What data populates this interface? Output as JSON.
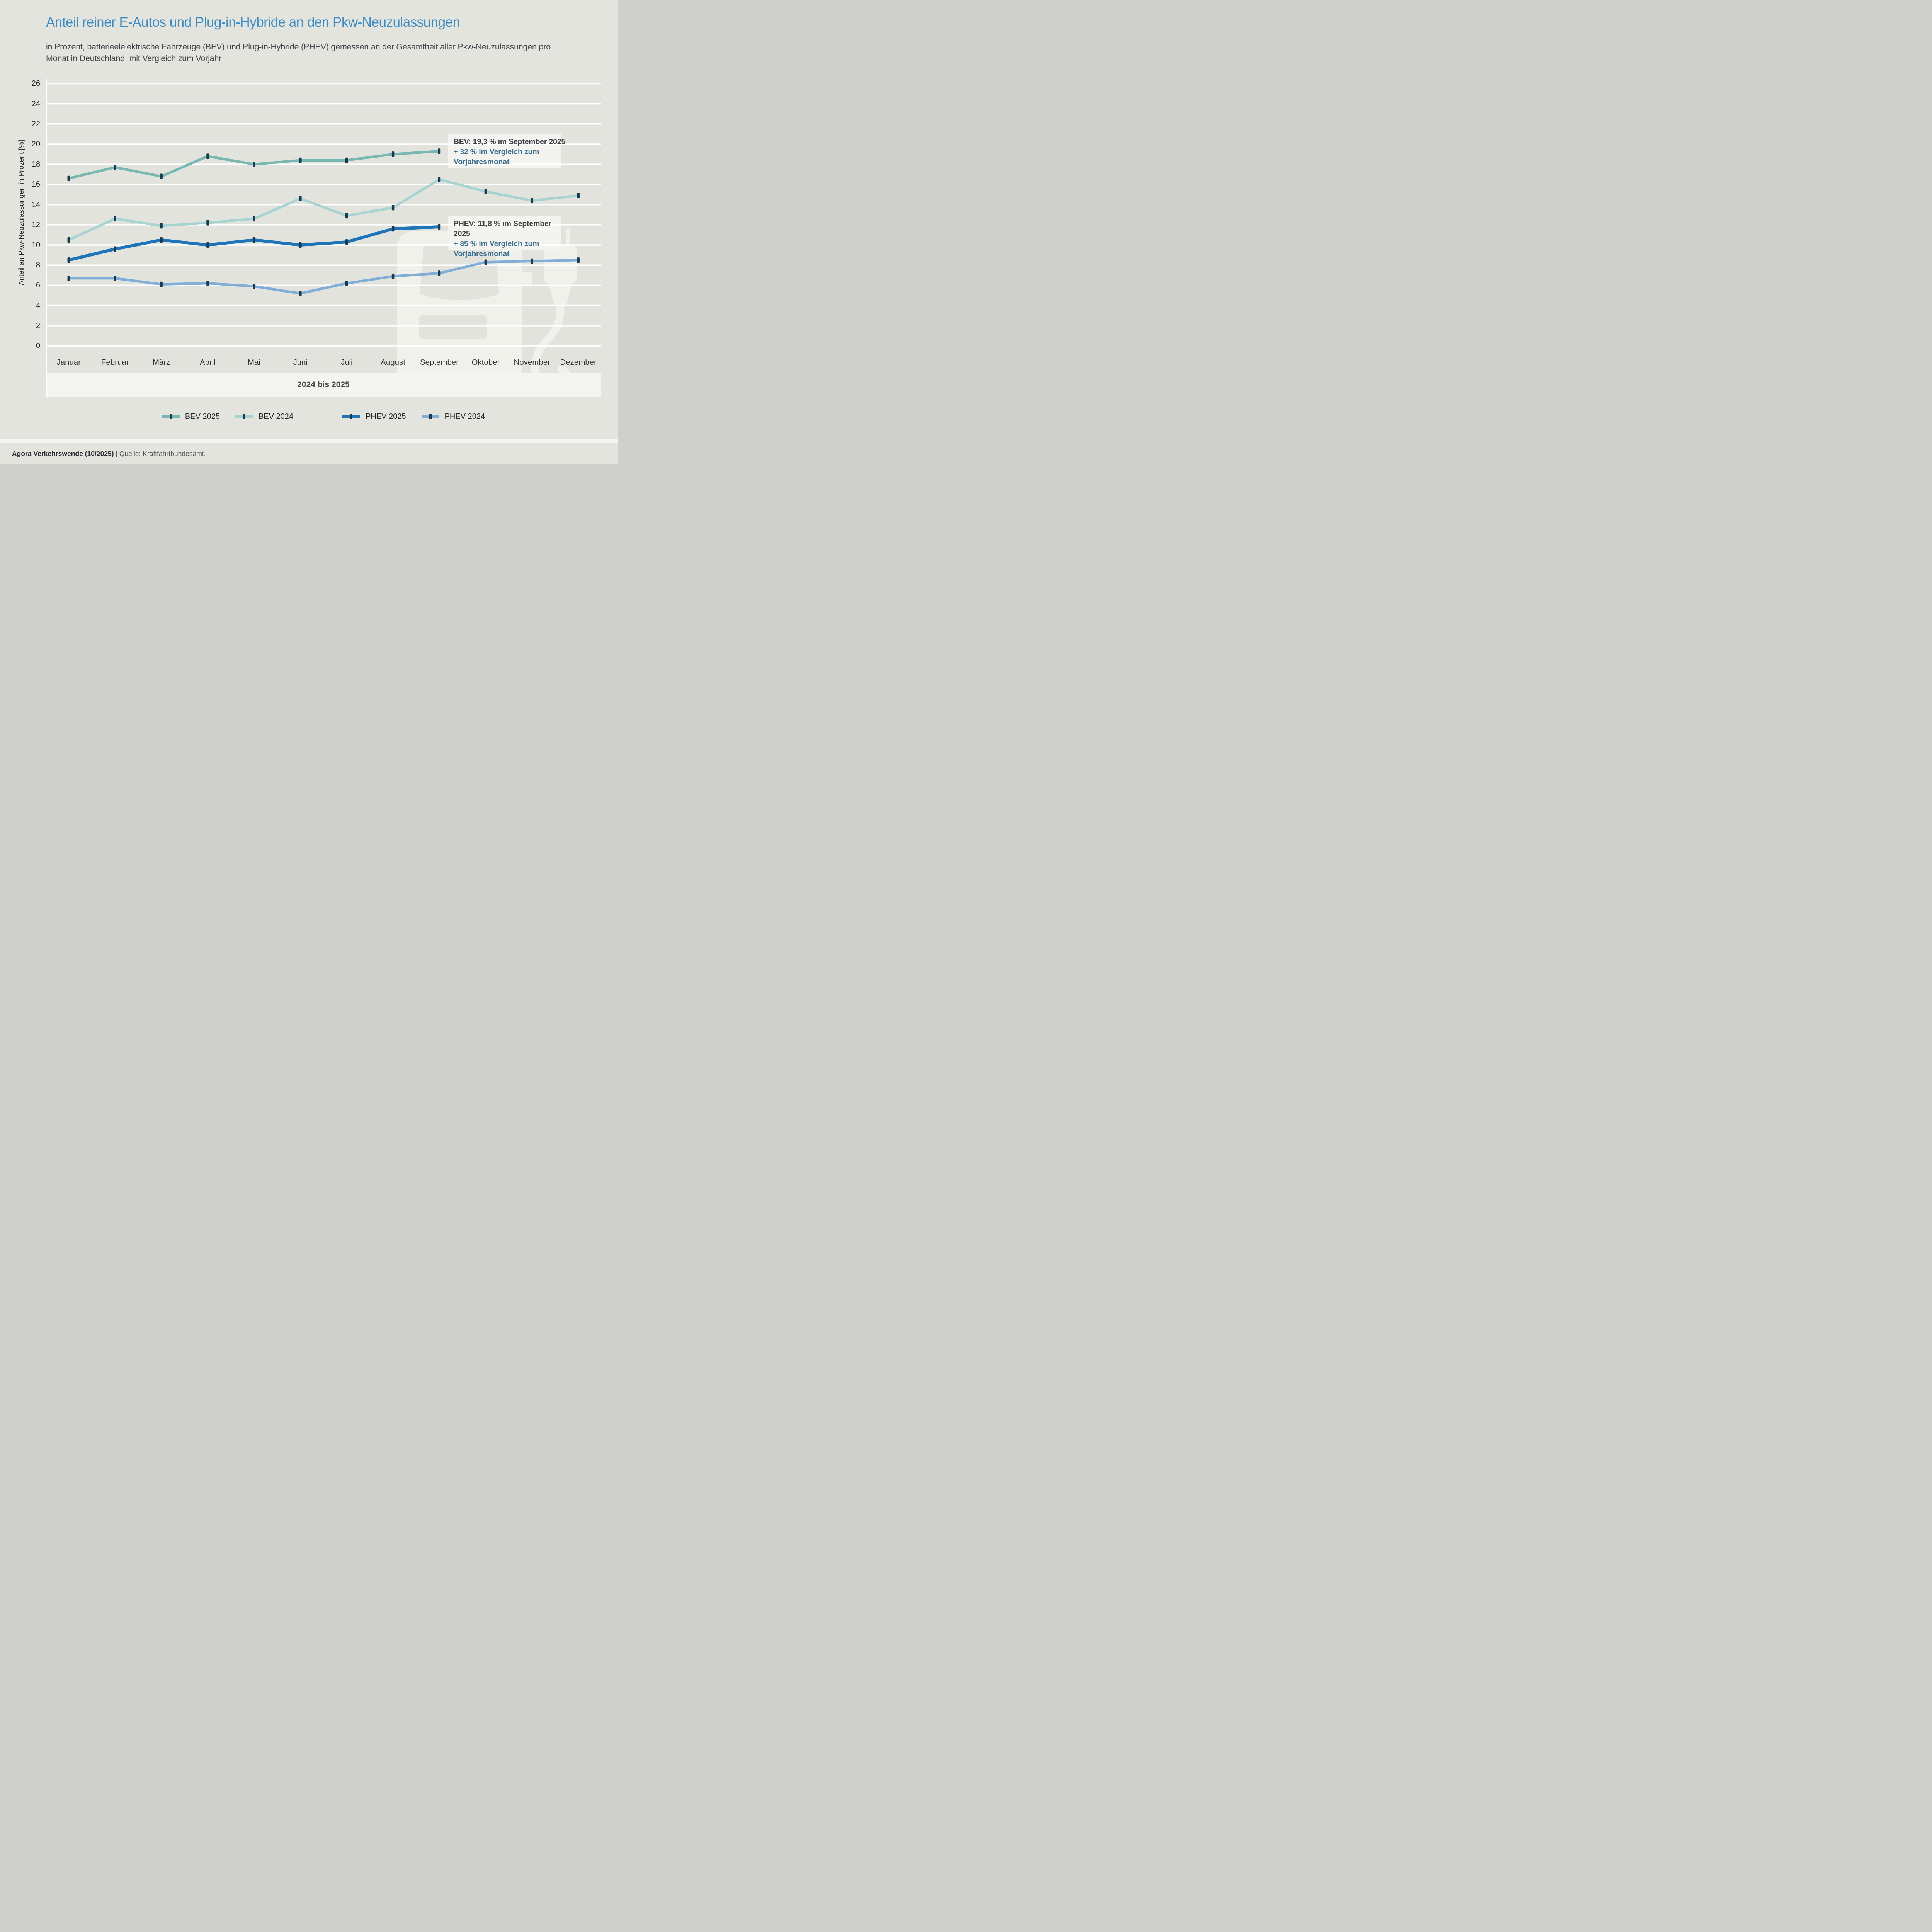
{
  "title": "Anteil reiner E-Autos und Plug-in-Hybride an den Pkw-Neuzulassungen",
  "subtitle_line1": "in Prozent, batterieelelektrische Fahrzeuge (BEV) und Plug-in-Hybride (PHEV) gemessen an der Gesamtheit aller Pkw-Neuzulassungen pro",
  "subtitle_line2": "Monat in Deutschland, mit Vergleich zum Vorjahr",
  "colors": {
    "page_bg": "#e4e4df",
    "plot_bg": "#e3e3de",
    "gridline": "#ffffff",
    "strip_bg": "#f4f4f1",
    "panel_bg": "#f3f3f0",
    "watermark": "#f1f1ec",
    "title_blue": "#3c8bc1",
    "marker_navy": "#1a3a50",
    "bev_2025": "#78b8b1",
    "bev_2024": "#a7d4d0",
    "phev_2025": "#1e74b8",
    "phev_2024": "#80aed7"
  },
  "chart_data": {
    "type": "line",
    "months": [
      "Januar",
      "Februar",
      "März",
      "April",
      "Mai",
      "Juni",
      "Juli",
      "August",
      "September",
      "Oktober",
      "November",
      "Dezember"
    ],
    "x_axis_label": "2024 bis 2025",
    "y_axis_label": "Anteil an Pkw-Neuzulassungen in Prozent [%]",
    "ylim": [
      0,
      26
    ],
    "ytick_step": 2,
    "grid": "horizontal-white-lines",
    "legend_position": "bottom",
    "series": [
      {
        "name": "BEV 2025",
        "color_key": "bev_2025",
        "stroke_width": 6.5,
        "values": [
          16.6,
          17.7,
          16.8,
          18.8,
          18.0,
          18.4,
          18.4,
          19.0,
          19.3
        ]
      },
      {
        "name": "BEV 2024",
        "color_key": "bev_2024",
        "stroke_width": 6.5,
        "values": [
          10.5,
          12.6,
          11.9,
          12.2,
          12.6,
          14.6,
          12.9,
          13.7,
          16.5,
          15.3,
          14.4,
          14.9
        ]
      },
      {
        "name": "PHEV 2025",
        "color_key": "phev_2025",
        "stroke_width": 8,
        "values": [
          8.5,
          9.6,
          10.5,
          10.0,
          10.5,
          10.0,
          10.3,
          11.6,
          11.8
        ]
      },
      {
        "name": "PHEV 2024",
        "color_key": "phev_2024",
        "stroke_width": 6.5,
        "values": [
          6.7,
          6.7,
          6.1,
          6.2,
          5.9,
          5.2,
          6.2,
          6.9,
          7.2,
          8.3,
          8.4,
          8.5
        ]
      }
    ],
    "marker": "vertical-tick"
  },
  "annotations": {
    "bev": {
      "headline": "BEV: 19,3 % im September 2025",
      "comparison_line1": "+ 32 % im Vergleich zum",
      "comparison_line2": "Vorjahresmonat"
    },
    "phev": {
      "headline": "PHEV: 11,8 % im September 2025",
      "comparison_line1": "+ 85 % im Vergleich zum",
      "comparison_line2": "Vorjahresmonat"
    }
  },
  "legend": {
    "items": [
      {
        "label": "BEV 2025",
        "color_key": "bev_2025"
      },
      {
        "label": "BEV 2024",
        "color_key": "bev_2024"
      },
      {
        "label": "PHEV 2025",
        "color_key": "phev_2025"
      },
      {
        "label": "PHEV 2024",
        "color_key": "phev_2024"
      }
    ]
  },
  "footer": {
    "bold_part": "Agora Verkehrswende (10/2025) ",
    "regular_part": "| Quelle: Kraftfahrtbundesamt."
  },
  "watermark_icon": "ev-car-with-charging-plug-watermark"
}
